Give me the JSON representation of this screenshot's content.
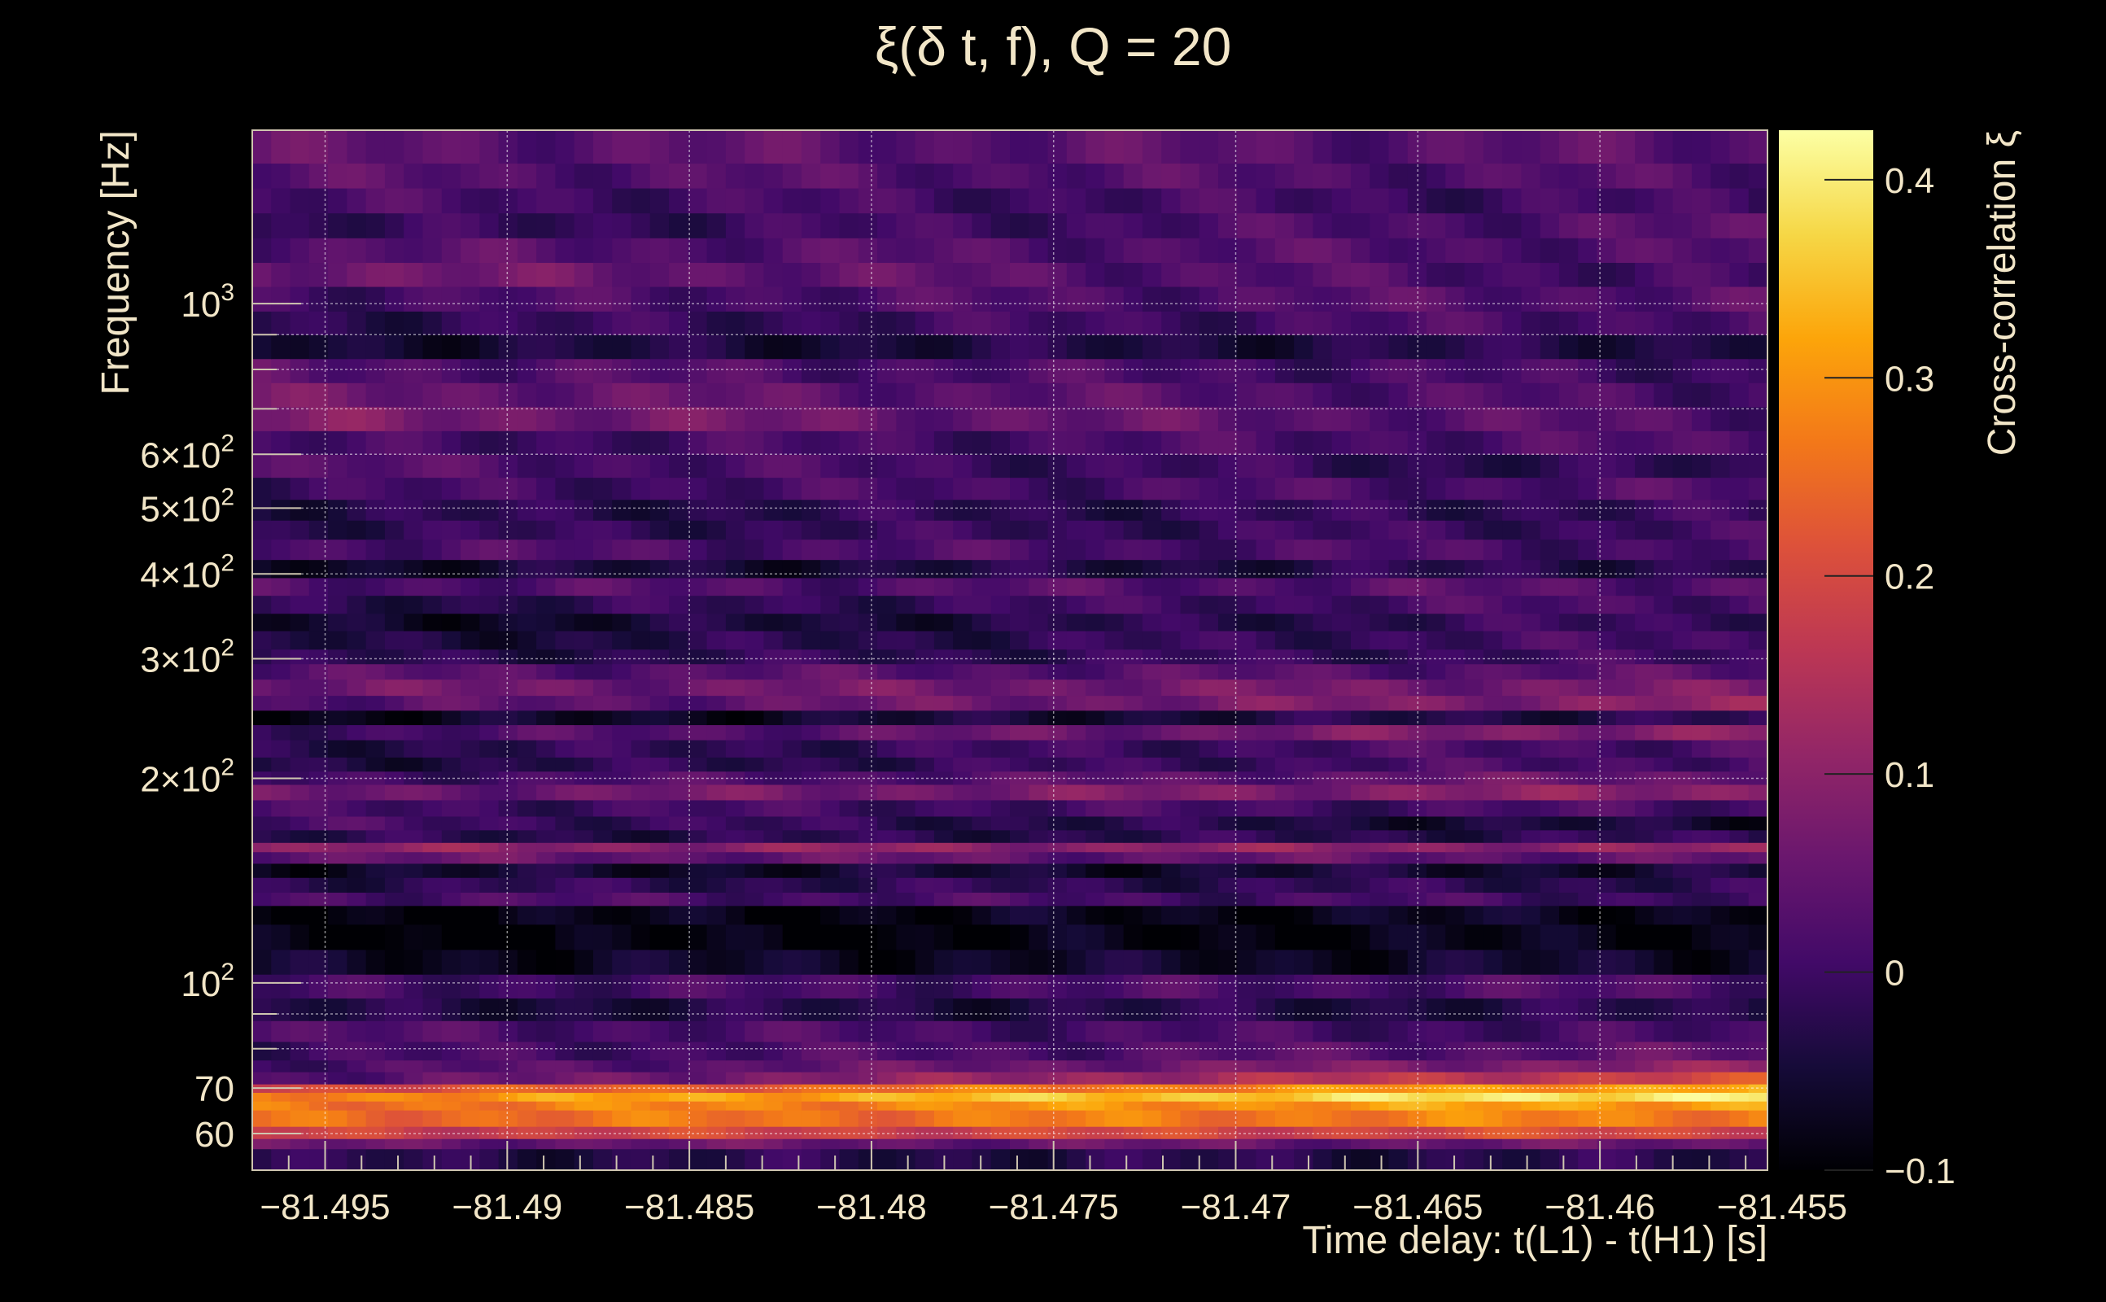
{
  "chart_data": {
    "type": "heatmap",
    "title": "ξ(δ t, f), Q = 20",
    "xlabel": "Time delay: t(L1) - t(H1) [s]",
    "ylabel": "Frequency [Hz]",
    "colorbar_label": "Cross-correlation ξ",
    "xlim": [
      -81.497,
      -81.4554
    ],
    "ylim": [
      53,
      1800
    ],
    "y_scale": "log",
    "grid": true,
    "colormap": "inferno",
    "colorbar_range": [
      -0.1,
      0.425
    ],
    "x_ticks": [
      {
        "value": -81.495,
        "label": "−81.495"
      },
      {
        "value": -81.49,
        "label": "−81.49"
      },
      {
        "value": -81.485,
        "label": "−81.485"
      },
      {
        "value": -81.48,
        "label": "−81.48"
      },
      {
        "value": -81.475,
        "label": "−81.475"
      },
      {
        "value": -81.47,
        "label": "−81.47"
      },
      {
        "value": -81.465,
        "label": "−81.465"
      },
      {
        "value": -81.46,
        "label": "−81.46"
      },
      {
        "value": -81.455,
        "label": "−81.455"
      }
    ],
    "y_ticks": [
      {
        "value": 60,
        "base": "60",
        "exp": ""
      },
      {
        "value": 70,
        "base": "70",
        "exp": ""
      },
      {
        "value": 100,
        "base": "10",
        "exp": "2"
      },
      {
        "value": 200,
        "base": "2×10",
        "exp": "2"
      },
      {
        "value": 300,
        "base": "3×10",
        "exp": "2"
      },
      {
        "value": 400,
        "base": "4×10",
        "exp": "2"
      },
      {
        "value": 500,
        "base": "5×10",
        "exp": "2"
      },
      {
        "value": 600,
        "base": "6×10",
        "exp": "2"
      },
      {
        "value": 1000,
        "base": "10",
        "exp": "3"
      }
    ],
    "colorbar_ticks": [
      {
        "value": -0.1,
        "label": "−0.1"
      },
      {
        "value": 0,
        "label": "0"
      },
      {
        "value": 0.1,
        "label": "0.1"
      },
      {
        "value": 0.2,
        "label": "0.2"
      },
      {
        "value": 0.3,
        "label": "0.3"
      },
      {
        "value": 0.4,
        "label": "0.4"
      }
    ],
    "frequency_rows": [
      {
        "f_low": 53,
        "f_high": 57,
        "v0": -0.03,
        "v1": -0.03
      },
      {
        "f_low": 57,
        "f_high": 59,
        "v0": 0.05,
        "v1": 0.05
      },
      {
        "f_low": 59,
        "f_high": 61.5,
        "v0": 0.18,
        "v1": 0.2
      },
      {
        "f_low": 61.5,
        "f_high": 65,
        "v0": 0.25,
        "v1": 0.28
      },
      {
        "f_low": 65,
        "f_high": 67,
        "v0": 0.26,
        "v1": 0.32
      },
      {
        "f_low": 67,
        "f_high": 69,
        "v0": 0.28,
        "v1": 0.41
      },
      {
        "f_low": 69,
        "f_high": 71,
        "v0": 0.2,
        "v1": 0.33
      },
      {
        "f_low": 71,
        "f_high": 74,
        "v0": 0.02,
        "v1": 0.2
      },
      {
        "f_low": 74,
        "f_high": 77,
        "v0": 0.01,
        "v1": 0.1
      },
      {
        "f_low": 77,
        "f_high": 82,
        "v0": 0.0,
        "v1": 0.04
      },
      {
        "f_low": 82,
        "f_high": 88,
        "v0": 0.02,
        "v1": 0.0
      },
      {
        "f_low": 88,
        "f_high": 95,
        "v0": -0.04,
        "v1": -0.03
      },
      {
        "f_low": 95,
        "f_high": 103,
        "v0": 0.0,
        "v1": 0.02
      },
      {
        "f_low": 103,
        "f_high": 112,
        "v0": -0.07,
        "v1": -0.06
      },
      {
        "f_low": 112,
        "f_high": 122,
        "v0": -0.1,
        "v1": -0.08
      },
      {
        "f_low": 122,
        "f_high": 130,
        "v0": -0.09,
        "v1": -0.07
      },
      {
        "f_low": 130,
        "f_high": 136,
        "v0": 0.02,
        "v1": 0.0
      },
      {
        "f_low": 136,
        "f_high": 143,
        "v0": -0.02,
        "v1": -0.02
      },
      {
        "f_low": 143,
        "f_high": 150,
        "v0": -0.06,
        "v1": -0.05
      },
      {
        "f_low": 150,
        "f_high": 156,
        "v0": 0.05,
        "v1": 0.04
      },
      {
        "f_low": 156,
        "f_high": 161,
        "v0": 0.1,
        "v1": 0.1
      },
      {
        "f_low": 161,
        "f_high": 168,
        "v0": -0.03,
        "v1": -0.02
      },
      {
        "f_low": 168,
        "f_high": 176,
        "v0": 0.01,
        "v1": -0.06
      },
      {
        "f_low": 176,
        "f_high": 186,
        "v0": 0.0,
        "v1": 0.01
      },
      {
        "f_low": 186,
        "f_high": 196,
        "v0": 0.05,
        "v1": 0.1
      },
      {
        "f_low": 196,
        "f_high": 205,
        "v0": 0.0,
        "v1": 0.06
      },
      {
        "f_low": 205,
        "f_high": 215,
        "v0": -0.04,
        "v1": 0.02
      },
      {
        "f_low": 215,
        "f_high": 228,
        "v0": -0.03,
        "v1": 0.02
      },
      {
        "f_low": 228,
        "f_high": 240,
        "v0": 0.0,
        "v1": 0.1
      },
      {
        "f_low": 240,
        "f_high": 252,
        "v0": -0.08,
        "v1": -0.02
      },
      {
        "f_low": 252,
        "f_high": 265,
        "v0": 0.02,
        "v1": 0.1
      },
      {
        "f_low": 265,
        "f_high": 280,
        "v0": 0.06,
        "v1": 0.07
      },
      {
        "f_low": 280,
        "f_high": 295,
        "v0": 0.03,
        "v1": 0.03
      },
      {
        "f_low": 295,
        "f_high": 310,
        "v0": -0.03,
        "v1": 0.0
      },
      {
        "f_low": 310,
        "f_high": 330,
        "v0": -0.05,
        "v1": 0.01
      },
      {
        "f_low": 330,
        "f_high": 350,
        "v0": -0.07,
        "v1": 0.0
      },
      {
        "f_low": 350,
        "f_high": 372,
        "v0": -0.03,
        "v1": 0.02
      },
      {
        "f_low": 372,
        "f_high": 395,
        "v0": 0.02,
        "v1": 0.03
      },
      {
        "f_low": 395,
        "f_high": 420,
        "v0": -0.06,
        "v1": -0.02
      },
      {
        "f_low": 420,
        "f_high": 450,
        "v0": 0.02,
        "v1": 0.01
      },
      {
        "f_low": 450,
        "f_high": 480,
        "v0": -0.02,
        "v1": 0.0
      },
      {
        "f_low": 480,
        "f_high": 515,
        "v0": -0.03,
        "v1": -0.01
      },
      {
        "f_low": 515,
        "f_high": 555,
        "v0": 0.0,
        "v1": 0.02
      },
      {
        "f_low": 555,
        "f_high": 600,
        "v0": 0.03,
        "v1": -0.03
      },
      {
        "f_low": 600,
        "f_high": 650,
        "v0": 0.0,
        "v1": 0.02
      },
      {
        "f_low": 650,
        "f_high": 705,
        "v0": 0.08,
        "v1": 0.02
      },
      {
        "f_low": 705,
        "f_high": 765,
        "v0": 0.06,
        "v1": 0.01
      },
      {
        "f_low": 765,
        "f_high": 830,
        "v0": 0.03,
        "v1": 0.0
      },
      {
        "f_low": 830,
        "f_high": 900,
        "v0": -0.05,
        "v1": -0.03
      },
      {
        "f_low": 900,
        "f_high": 975,
        "v0": -0.02,
        "v1": 0.02
      },
      {
        "f_low": 975,
        "f_high": 1060,
        "v0": 0.01,
        "v1": 0.03
      },
      {
        "f_low": 1060,
        "f_high": 1150,
        "v0": 0.07,
        "v1": 0.0
      },
      {
        "f_low": 1150,
        "f_high": 1250,
        "v0": 0.03,
        "v1": 0.02
      },
      {
        "f_low": 1250,
        "f_high": 1360,
        "v0": -0.02,
        "v1": 0.03
      },
      {
        "f_low": 1360,
        "f_high": 1480,
        "v0": 0.01,
        "v1": 0.0
      },
      {
        "f_low": 1480,
        "f_high": 1610,
        "v0": 0.03,
        "v1": 0.02
      },
      {
        "f_low": 1610,
        "f_high": 1800,
        "v0": 0.04,
        "v1": 0.03
      }
    ]
  }
}
